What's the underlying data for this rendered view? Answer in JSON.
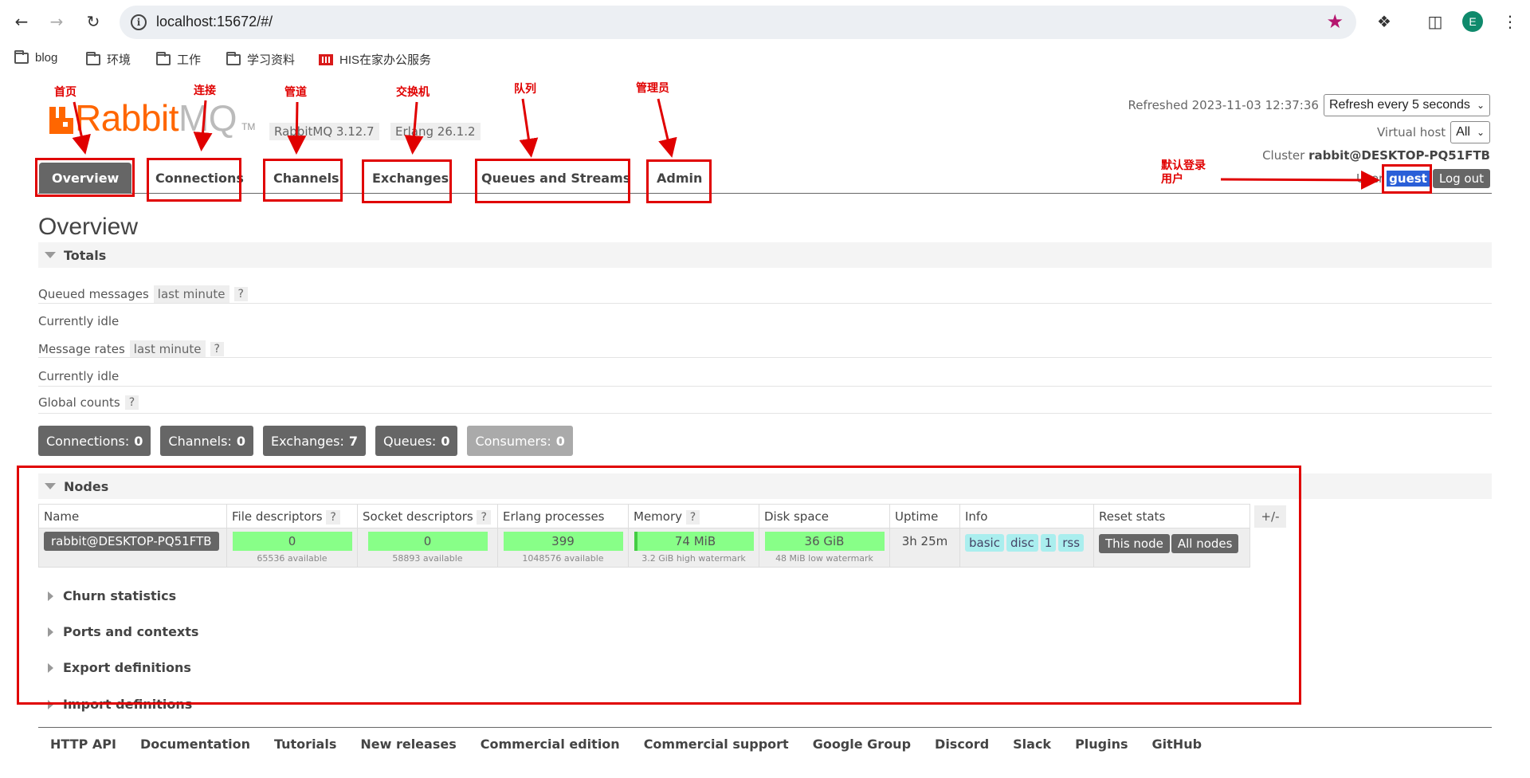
{
  "browser": {
    "url": "localhost:15672/#/",
    "profile_initial": "E",
    "bookmarks": [
      "blog",
      "环境",
      "工作",
      "学习资料",
      "HIS在家办公服务"
    ]
  },
  "brand": {
    "name_main": "Rabbit",
    "name_mq": "MQ",
    "tm": "TM"
  },
  "versions": {
    "rabbitmq": "RabbitMQ 3.12.7",
    "erlang": "Erlang 26.1.2"
  },
  "header": {
    "refreshed_label": "Refreshed 2023-11-03 12:37:36",
    "refresh_select": "Refresh every 5 seconds",
    "vhost_label": "Virtual host",
    "vhost_select": "All",
    "cluster_label": "Cluster",
    "cluster_name": "rabbit@DESKTOP-PQ51FTB",
    "user_label": "User",
    "user_name": "guest",
    "logout": "Log out"
  },
  "tabs": [
    "Overview",
    "Connections",
    "Channels",
    "Exchanges",
    "Queues and Streams",
    "Admin"
  ],
  "page_title": "Overview",
  "totals": {
    "header": "Totals",
    "queued_label": "Queued messages",
    "queued_chip": "last minute",
    "queued_help": "?",
    "queued_idle": "Currently idle",
    "rates_label": "Message rates",
    "rates_chip": "last minute",
    "rates_help": "?",
    "rates_idle": "Currently idle",
    "global_label": "Global counts",
    "global_help": "?"
  },
  "counts": [
    {
      "label": "Connections:",
      "value": "0"
    },
    {
      "label": "Channels:",
      "value": "0"
    },
    {
      "label": "Exchanges:",
      "value": "7"
    },
    {
      "label": "Queues:",
      "value": "0"
    },
    {
      "label": "Consumers:",
      "value": "0"
    }
  ],
  "nodes": {
    "header": "Nodes",
    "columns": [
      "Name",
      "File descriptors",
      "Socket descriptors",
      "Erlang processes",
      "Memory",
      "Disk space",
      "Uptime",
      "Info",
      "Reset stats"
    ],
    "help": "?",
    "plus_minus": "+/-",
    "row": {
      "name": "rabbit@DESKTOP-PQ51FTB",
      "fd_value": "0",
      "fd_sub": "65536 available",
      "sd_value": "0",
      "sd_sub": "58893 available",
      "ep_value": "399",
      "ep_sub": "1048576 available",
      "mem_value": "74 MiB",
      "mem_sub": "3.2 GiB high watermark",
      "disk_value": "36 GiB",
      "disk_sub": "48 MiB low watermark",
      "uptime": "3h 25m",
      "info": [
        "basic",
        "disc",
        "1",
        "rss"
      ],
      "reset_this": "This node",
      "reset_all": "All nodes"
    }
  },
  "collapsed_sections": [
    "Churn statistics",
    "Ports and contexts",
    "Export definitions",
    "Import definitions"
  ],
  "footer_links": [
    "HTTP API",
    "Documentation",
    "Tutorials",
    "New releases",
    "Commercial edition",
    "Commercial support",
    "Google Group",
    "Discord",
    "Slack",
    "Plugins",
    "GitHub"
  ],
  "annotations": {
    "home": "首页",
    "connection": "连接",
    "channel": "管道",
    "exchange": "交换机",
    "queue": "队列",
    "admin": "管理员",
    "default_user_line1": "默认登录",
    "default_user_line2": "用户"
  },
  "colors": {
    "annotation": "#e00000",
    "brand": "#ff6600",
    "tab_active": "#666666",
    "progress_ok": "#88ff88",
    "info_chip": "#aaeeee"
  }
}
